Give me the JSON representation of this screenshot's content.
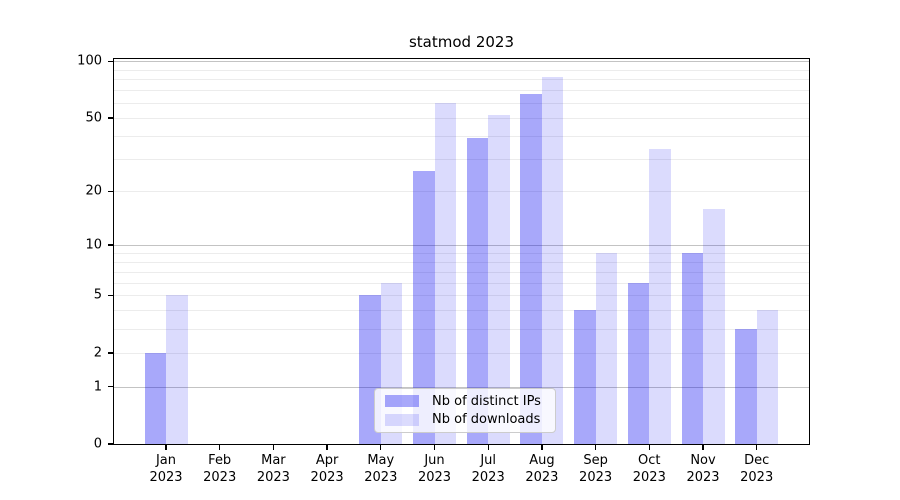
{
  "chart_data": {
    "type": "bar",
    "title": "statmod 2023",
    "categories": [
      "Jan",
      "Feb",
      "Mar",
      "Apr",
      "May",
      "Jun",
      "Jul",
      "Aug",
      "Sep",
      "Oct",
      "Nov",
      "Dec"
    ],
    "year_label": "2023",
    "series": [
      {
        "name": "Nb of distinct IPs",
        "color": "rgba(0,0,240,0.34)",
        "color_hex": "#aaaaf5",
        "values": [
          2,
          0,
          0,
          0,
          5,
          26,
          39,
          67,
          4,
          6,
          9,
          3
        ]
      },
      {
        "name": "Nb of downloads",
        "color": "rgba(0,0,240,0.14)",
        "color_hex": "#dbdbf8",
        "values": [
          5,
          0,
          0,
          0,
          6,
          60,
          52,
          82,
          9,
          34,
          16,
          4
        ]
      }
    ],
    "yscale": "log1p",
    "ylim": [
      0,
      107
    ],
    "ytick_values": [
      0,
      1,
      2,
      5,
      10,
      20,
      50,
      100
    ],
    "ytick_labels": [
      "0",
      "1",
      "2",
      "5",
      "10",
      "20",
      "50",
      "100"
    ],
    "major_grid_values": [
      1,
      10,
      100
    ],
    "minor_grid_values": [
      2,
      3,
      4,
      5,
      6,
      7,
      8,
      9,
      20,
      30,
      40,
      50,
      60,
      70,
      80,
      90
    ],
    "grid": true,
    "legend_position": "lower center"
  }
}
